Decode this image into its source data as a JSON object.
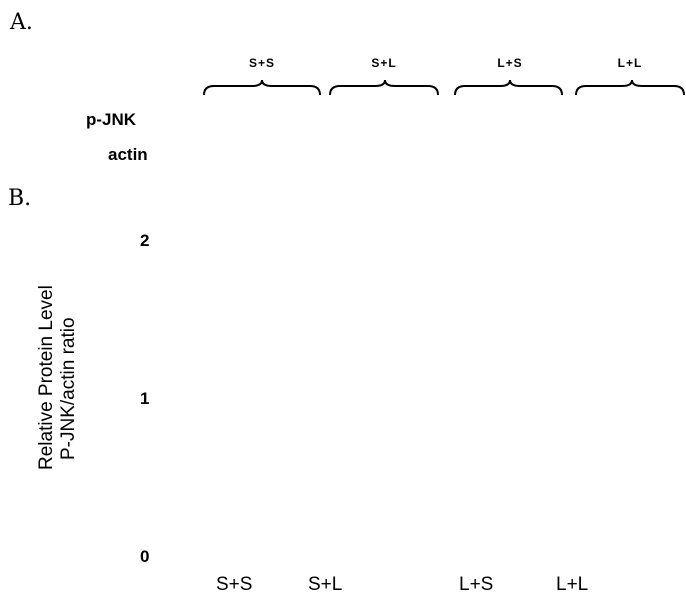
{
  "panel_a": {
    "letter": "A.",
    "groups": [
      "S+S",
      "S+L",
      "L+S",
      "L+L"
    ],
    "blot_rows": [
      "p-JNK",
      "actin"
    ]
  },
  "panel_b": {
    "letter": "B."
  },
  "chart_data": {
    "type": "bar",
    "categories": [
      "S+S",
      "S+L",
      "L+S",
      "L+L"
    ],
    "series": [],
    "ylabel": "Relative Protein Level",
    "ylabel2": "P-JNK/actin ratio",
    "yticks": [
      "0",
      "1",
      "2"
    ],
    "ylim": [
      0,
      2
    ],
    "grid": false
  }
}
